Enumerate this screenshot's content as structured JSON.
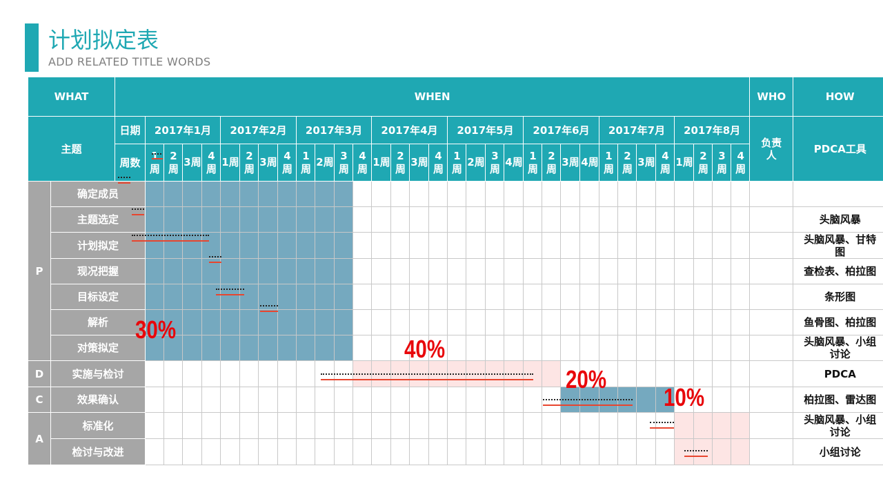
{
  "header": {
    "title": "计划拟定表",
    "subtitle": "ADD RELATED TITLE WORDS"
  },
  "table": {
    "what": "WHAT",
    "when": "WHEN",
    "who": "WHO",
    "how": "HOW",
    "theme": "主题",
    "date_label": "日期",
    "week_label": "周数",
    "owner_label": "负责人",
    "tool_label": "PDCA工具",
    "months": [
      "2017年1月",
      "2017年2月",
      "2017年3月",
      "2017年4月",
      "2017年5月",
      "2017年6月",
      "2017年7月",
      "2017年8月"
    ],
    "weeks": [
      "1周",
      "2周",
      "3周",
      "4周"
    ],
    "phases": [
      {
        "name": "P",
        "span": 7
      },
      {
        "name": "D",
        "span": 1
      },
      {
        "name": "C",
        "span": 1
      },
      {
        "name": "A",
        "span": 2
      }
    ],
    "rows": [
      {
        "step": "确定成员",
        "tool": "",
        "start": 1,
        "end": 1,
        "fill": "b"
      },
      {
        "step": "主题选定",
        "tool": "头脑风暴",
        "start": 2,
        "end": 2,
        "fill": "b"
      },
      {
        "step": "计划拟定",
        "tool": "头脑风暴、甘特图",
        "start": 2,
        "end": 6,
        "fill": "b"
      },
      {
        "step": "现况把握",
        "tool": "查检表、柏拉图",
        "start": 6,
        "end": 6,
        "fill": "b"
      },
      {
        "step": "目标设定",
        "tool": "条形图",
        "start": 6,
        "end": 7,
        "fill": "b"
      },
      {
        "step": "解析",
        "tool": "鱼骨图、柏拉图",
        "start": 8,
        "end": 8,
        "fill": "b"
      },
      {
        "step": "对策拟定",
        "tool": "头脑风暴、小组讨论",
        "start": 0,
        "end": 0,
        "fill": "b"
      },
      {
        "step": "实施与检讨",
        "tool": "PDCA",
        "start": 12,
        "end": 22,
        "fill": "p"
      },
      {
        "step": "效果确认",
        "tool": "柏拉图、雷达图",
        "start": 23,
        "end": 27,
        "fill": "b"
      },
      {
        "step": "标准化",
        "tool": "头脑风暴、小组讨论",
        "start": 29,
        "end": 29,
        "fill": "p"
      },
      {
        "step": "检讨与改进",
        "tool": "小组讨论",
        "start": 30,
        "end": 31,
        "fill": "p"
      }
    ]
  },
  "percentages": [
    "30%",
    "40%",
    "20%",
    "10%"
  ],
  "colors": {
    "accent": "#1fa8b3",
    "phase_gray": "#a6a6a6",
    "plan_blue": "#75a9bf",
    "pink": "#fde5e4",
    "red": "#e8070b",
    "bar_red": "#e8452e"
  }
}
